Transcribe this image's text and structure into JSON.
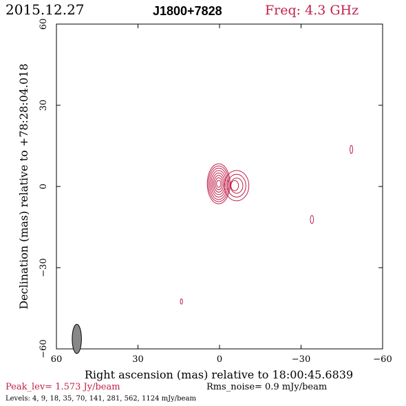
{
  "header": {
    "date": "2015.12.27",
    "source": "J1800+7828",
    "freq": "Freq: 4.3 GHz"
  },
  "footer": {
    "peak": "Peak_lev=  1.573 Jy/beam",
    "rms": "Rms_noise=  0.9 mJy/beam",
    "levels": "Levels:   4,   9,  18,  35,  70, 141, 281, 562, 1124 mJy/beam"
  },
  "colors": {
    "contour": "#c0204a",
    "axis": "#000000",
    "beam": "#888888",
    "peak_text": "#c0204a",
    "freq_text": "#c0204a"
  },
  "chart_data": {
    "type": "contour",
    "title": "J1800+7828",
    "xlabel": "Right ascension (mas) relative to 18:00:45.6839",
    "ylabel": "Declination (mas) relative to +78:28:04.018",
    "xlim": [
      60,
      -60
    ],
    "ylim": [
      -60,
      60
    ],
    "xticks": [
      60,
      30,
      0,
      -30,
      -60
    ],
    "yticks": [
      -60,
      -30,
      0,
      30,
      60
    ],
    "xtick_labels": [
      "60",
      "30",
      "0",
      "−30",
      "−60"
    ],
    "ytick_labels": [
      "−60",
      "−30",
      "0",
      "30",
      "60"
    ],
    "peak_jy_per_beam": 1.573,
    "rms_mjy_per_beam": 0.9,
    "levels_mjy_per_beam": [
      4,
      9,
      18,
      35,
      70,
      141,
      281,
      562,
      1124
    ],
    "components": [
      {
        "name": "core",
        "ra": 0.3,
        "dec": 1.0,
        "rings": [
          [
            4.2,
            7.4
          ],
          [
            3.8,
            6.6
          ],
          [
            3.3,
            5.8
          ],
          [
            2.8,
            4.9
          ],
          [
            2.3,
            4.0
          ],
          [
            1.8,
            3.1
          ],
          [
            1.3,
            2.2
          ],
          [
            0.8,
            1.3
          ]
        ]
      },
      {
        "name": "jet",
        "ra": -6.3,
        "dec": 0.3,
        "rings": [
          [
            4.5,
            5.6
          ],
          [
            3.4,
            4.2
          ],
          [
            2.3,
            2.8
          ]
        ]
      },
      {
        "name": "jet-knot",
        "ra": -5.6,
        "dec": 0.3,
        "rings": [
          [
            1.4,
            1.9
          ]
        ]
      },
      {
        "name": "spot-ne",
        "ra": -48.5,
        "dec": 13.7,
        "rings": [
          [
            0.5,
            1.5
          ]
        ]
      },
      {
        "name": "spot-e",
        "ra": -34.0,
        "dec": -12.2,
        "rings": [
          [
            0.6,
            1.5
          ]
        ]
      },
      {
        "name": "spot-sw",
        "ra": 14.0,
        "dec": -42.5,
        "rings": [
          [
            0.4,
            1.0
          ]
        ]
      }
    ],
    "beam": {
      "ra": 52.5,
      "dec": -56.3,
      "major": 5.4,
      "minor": 1.7,
      "pa": 0
    }
  }
}
